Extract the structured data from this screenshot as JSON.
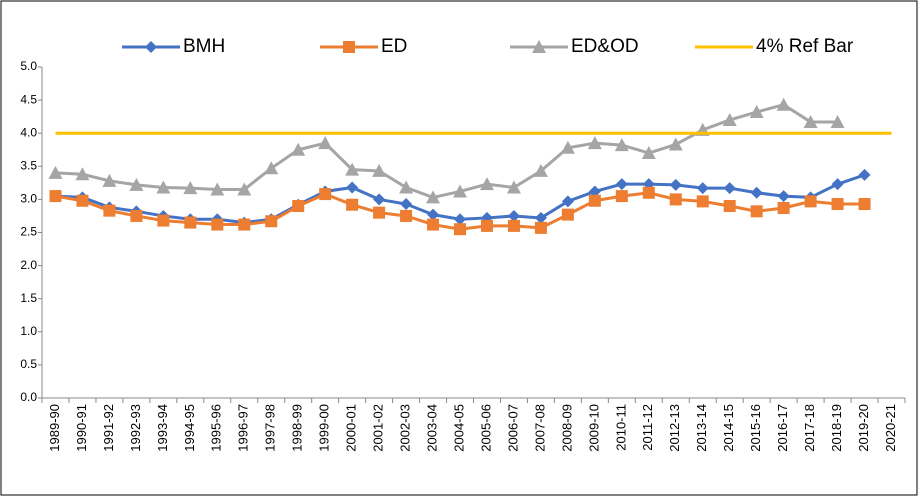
{
  "chart_data": {
    "type": "line",
    "categories": [
      "1989-90",
      "1990-91",
      "1991-92",
      "1992-93",
      "1993-94",
      "1994-95",
      "1995-96",
      "1996-97",
      "1997-98",
      "1998-99",
      "1999-00",
      "2000-01",
      "2001-02",
      "2002-03",
      "2003-04",
      "2004-05",
      "2005-06",
      "2006-07",
      "2007-08",
      "2008-09",
      "2009-10",
      "2010-11",
      "2011-12",
      "2012-13",
      "2013-14",
      "2014-15",
      "2015-16",
      "2016-17",
      "2017-18",
      "2018-19",
      "2019-20",
      "2020-21"
    ],
    "series": [
      {
        "name": "BMH",
        "color": "#4472c4",
        "marker": "diamond",
        "values": [
          3.05,
          3.03,
          2.88,
          2.82,
          2.75,
          2.7,
          2.7,
          2.65,
          2.7,
          2.92,
          3.12,
          3.18,
          3.0,
          2.93,
          2.77,
          2.7,
          2.72,
          2.75,
          2.72,
          2.97,
          3.12,
          3.23,
          3.23,
          3.22,
          3.17,
          3.17,
          3.1,
          3.05,
          3.03,
          3.23,
          3.37,
          null
        ]
      },
      {
        "name": "ED",
        "color": "#ed7d31",
        "marker": "square",
        "values": [
          3.05,
          2.98,
          2.83,
          2.75,
          2.68,
          2.65,
          2.62,
          2.62,
          2.67,
          2.9,
          3.08,
          2.92,
          2.8,
          2.75,
          2.62,
          2.55,
          2.6,
          2.6,
          2.57,
          2.77,
          2.98,
          3.05,
          3.1,
          3.0,
          2.97,
          2.9,
          2.82,
          2.87,
          2.97,
          2.93,
          2.93,
          null
        ]
      },
      {
        "name": "ED&OD",
        "color": "#a5a5a5",
        "marker": "triangle",
        "values": [
          3.4,
          3.38,
          3.28,
          3.22,
          3.18,
          3.17,
          3.15,
          3.15,
          3.47,
          3.75,
          3.85,
          3.45,
          3.43,
          3.18,
          3.03,
          3.12,
          3.23,
          3.18,
          3.43,
          3.78,
          3.85,
          3.82,
          3.7,
          3.83,
          4.05,
          4.2,
          4.32,
          4.43,
          4.17,
          4.17,
          null,
          null
        ]
      },
      {
        "name": "4% Ref Bar",
        "color": "#ffc000",
        "marker": "none",
        "values": [
          4,
          4,
          4,
          4,
          4,
          4,
          4,
          4,
          4,
          4,
          4,
          4,
          4,
          4,
          4,
          4,
          4,
          4,
          4,
          4,
          4,
          4,
          4,
          4,
          4,
          4,
          4,
          4,
          4,
          4,
          4,
          4
        ]
      }
    ],
    "ylim": [
      0,
      5
    ],
    "yticks": [
      {
        "value": 0,
        "label": "0.0"
      },
      0.5,
      {
        "value": 1,
        "label": "1.0"
      },
      1.5,
      {
        "value": 2,
        "label": "2.0"
      },
      2.5,
      {
        "value": 3,
        "label": "3.0"
      },
      3.5,
      {
        "value": 4,
        "label": "4.0"
      },
      4.5,
      {
        "value": 5,
        "label": "5.0"
      }
    ],
    "grid": false,
    "legend": "top"
  }
}
